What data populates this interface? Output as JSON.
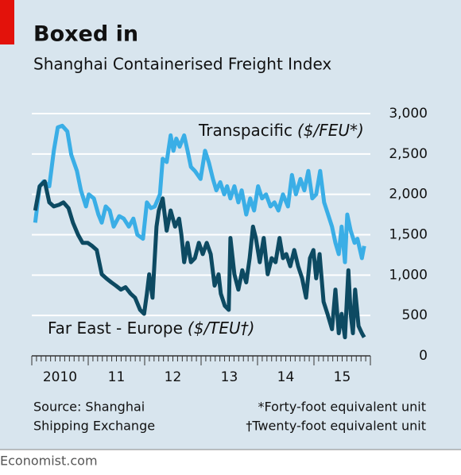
{
  "chart_data": {
    "type": "line",
    "title": "Boxed in",
    "subtitle": "Shanghai Containerised Freight Index",
    "source": [
      "Source: Shanghai",
      "Shipping Exchange"
    ],
    "notes": [
      "*Forty-foot equivalent unit",
      "†Twenty-foot equivalent unit"
    ],
    "brand": "Economist.com",
    "xlim": [
      2010,
      2016
    ],
    "xticks": [
      {
        "value": 2010.5,
        "label": "2010"
      },
      {
        "value": 2011.5,
        "label": "11"
      },
      {
        "value": 2012.5,
        "label": "12"
      },
      {
        "value": 2013.5,
        "label": "13"
      },
      {
        "value": 2014.5,
        "label": "14"
      },
      {
        "value": 2015.5,
        "label": "15"
      }
    ],
    "ylim": [
      0,
      3000
    ],
    "yticks": [
      0,
      500,
      {
        "value": 1000,
        "label": "1,000"
      },
      {
        "value": 1500,
        "label": "1,500"
      },
      {
        "value": 2000,
        "label": "2,000"
      },
      {
        "value": 2500,
        "label": "2,500"
      },
      {
        "value": 3000,
        "label": "3,000"
      }
    ],
    "grid": true,
    "series": [
      {
        "name": "Transpacific",
        "unit": "($/FEU*)",
        "color": "#3aaee6",
        "x": [
          2010.06,
          2010.14,
          2010.21,
          2010.31,
          2010.39,
          2010.46,
          2010.54,
          2010.63,
          2010.7,
          2010.8,
          2010.87,
          2010.96,
          2011.01,
          2011.1,
          2011.18,
          2011.24,
          2011.31,
          2011.38,
          2011.45,
          2011.55,
          2011.63,
          2011.72,
          2011.8,
          2011.87,
          2011.97,
          2012.04,
          2012.11,
          2012.18,
          2012.27,
          2012.32,
          2012.39,
          2012.46,
          2012.51,
          2012.56,
          2012.62,
          2012.7,
          2012.76,
          2012.82,
          2012.89,
          2012.99,
          2013.07,
          2013.14,
          2013.21,
          2013.27,
          2013.34,
          2013.41,
          2013.46,
          2013.52,
          2013.59,
          2013.66,
          2013.72,
          2013.8,
          2013.87,
          2013.94,
          2014.01,
          2014.08,
          2014.15,
          2014.23,
          2014.3,
          2014.37,
          2014.45,
          2014.54,
          2014.61,
          2014.68,
          2014.76,
          2014.83,
          2014.9,
          2014.97,
          2015.04,
          2015.11,
          2015.18,
          2015.25,
          2015.32,
          2015.38,
          2015.44,
          2015.49,
          2015.55,
          2015.59,
          2015.65,
          2015.72,
          2015.77,
          2015.85,
          2015.89
        ],
        "values": [
          1650,
          2100,
          2160,
          2100,
          2540,
          2830,
          2850,
          2780,
          2490,
          2290,
          2050,
          1850,
          2000,
          1950,
          1750,
          1650,
          1850,
          1800,
          1600,
          1730,
          1700,
          1600,
          1700,
          1500,
          1450,
          1900,
          1830,
          1850,
          2000,
          2440,
          2400,
          2730,
          2540,
          2690,
          2590,
          2730,
          2540,
          2340,
          2290,
          2190,
          2540,
          2390,
          2190,
          2050,
          2150,
          2000,
          2100,
          1950,
          2100,
          1900,
          2050,
          1750,
          1950,
          1800,
          2100,
          1950,
          2000,
          1850,
          1900,
          1800,
          2000,
          1850,
          2240,
          2000,
          2190,
          2050,
          2290,
          1950,
          2000,
          2290,
          1900,
          1750,
          1600,
          1400,
          1260,
          1600,
          1160,
          1750,
          1550,
          1400,
          1450,
          1210,
          1360
        ]
      },
      {
        "name": "Far East - Europe",
        "unit": "($/TEU†)",
        "color": "#0d4a62",
        "x": [
          2010.06,
          2010.14,
          2010.23,
          2010.31,
          2010.39,
          2010.48,
          2010.56,
          2010.65,
          2010.73,
          2010.82,
          2010.9,
          2010.99,
          2011.07,
          2011.15,
          2011.24,
          2011.32,
          2011.41,
          2011.49,
          2011.58,
          2011.66,
          2011.75,
          2011.83,
          2011.92,
          2011.99,
          2012.04,
          2012.08,
          2012.14,
          2012.21,
          2012.25,
          2012.32,
          2012.39,
          2012.46,
          2012.54,
          2012.61,
          2012.65,
          2012.7,
          2012.76,
          2012.82,
          2012.89,
          2012.96,
          2013.03,
          2013.1,
          2013.17,
          2013.24,
          2013.31,
          2013.35,
          2013.42,
          2013.49,
          2013.52,
          2013.59,
          2013.66,
          2013.73,
          2013.8,
          2013.86,
          2013.92,
          2013.97,
          2014.04,
          2014.11,
          2014.18,
          2014.25,
          2014.32,
          2014.39,
          2014.45,
          2014.51,
          2014.58,
          2014.65,
          2014.72,
          2014.79,
          2014.86,
          2014.93,
          2014.99,
          2015.04,
          2015.1,
          2015.17,
          2015.24,
          2015.32,
          2015.38,
          2015.44,
          2015.49,
          2015.55,
          2015.61,
          2015.65,
          2015.69,
          2015.73,
          2015.79,
          2015.85,
          2015.89
        ],
        "values": [
          1800,
          2100,
          2160,
          1900,
          1850,
          1870,
          1900,
          1830,
          1650,
          1500,
          1400,
          1400,
          1360,
          1310,
          1010,
          960,
          910,
          870,
          820,
          850,
          770,
          720,
          570,
          520,
          770,
          1010,
          720,
          1600,
          1800,
          1950,
          1550,
          1800,
          1600,
          1700,
          1500,
          1160,
          1400,
          1160,
          1210,
          1400,
          1260,
          1400,
          1260,
          870,
          1010,
          770,
          620,
          570,
          1460,
          1010,
          820,
          1060,
          910,
          1210,
          1600,
          1460,
          1160,
          1460,
          1010,
          1210,
          1160,
          1460,
          1210,
          1260,
          1110,
          1310,
          1110,
          960,
          720,
          1210,
          1310,
          960,
          1260,
          670,
          520,
          330,
          820,
          280,
          520,
          230,
          1060,
          520,
          280,
          820,
          370,
          280,
          230
        ]
      }
    ]
  }
}
